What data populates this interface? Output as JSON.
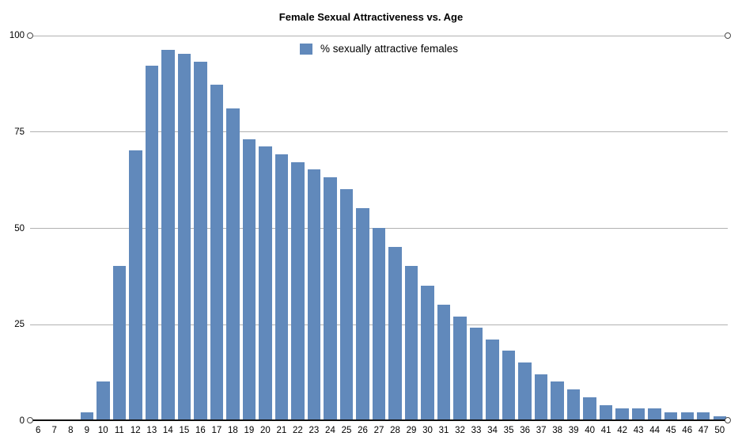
{
  "title": "Female Sexual Attractiveness vs. Age",
  "legend": {
    "label": "% sexually attractive females",
    "swatch_color": "#6189BB"
  },
  "colors": {
    "bar": "#6189BB",
    "gridline": "#b1b1b1",
    "axis_line": "#111111",
    "endpoint_stroke": "#4a4a4a",
    "endpoint_fill": "#ffffff",
    "text": "#000000",
    "background": "#ffffff"
  },
  "chart_data": {
    "type": "bar",
    "title": "Female Sexual Attractiveness vs. Age",
    "legend_entries": [
      "% sexually attractive females"
    ],
    "legend_position": "top-center",
    "categories": [
      "6",
      "7",
      "8",
      "9",
      "10",
      "11",
      "12",
      "13",
      "14",
      "15",
      "16",
      "17",
      "18",
      "19",
      "20",
      "21",
      "22",
      "23",
      "24",
      "25",
      "26",
      "27",
      "28",
      "29",
      "30",
      "31",
      "32",
      "33",
      "34",
      "35",
      "36",
      "37",
      "38",
      "39",
      "40",
      "41",
      "42",
      "43",
      "44",
      "45",
      "46",
      "47",
      "50"
    ],
    "values": [
      0,
      0,
      0,
      2,
      10,
      40,
      70,
      92,
      96,
      95,
      93,
      87,
      81,
      73,
      71,
      69,
      67,
      65,
      63,
      60,
      55,
      50,
      45,
      40,
      35,
      30,
      27,
      24,
      21,
      18,
      15,
      12,
      10,
      8,
      6,
      4,
      3,
      3,
      3,
      2,
      2,
      2,
      1
    ],
    "xlabel": "",
    "ylabel": "",
    "yticks": [
      0,
      25,
      50,
      75,
      100
    ],
    "ylim": [
      0,
      100
    ],
    "grid": true,
    "axis_endpoint_markers": true
  }
}
